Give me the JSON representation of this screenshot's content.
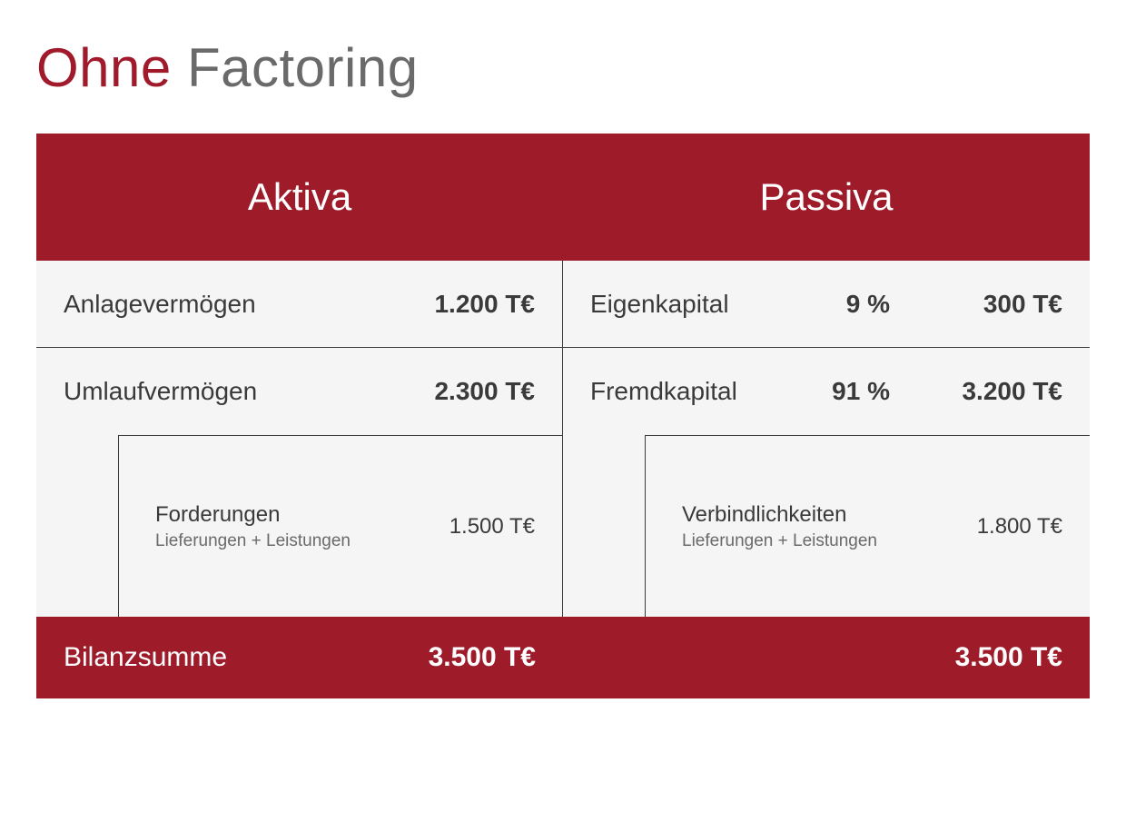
{
  "title": {
    "accent": "Ohne",
    "rest": " Factoring"
  },
  "colors": {
    "accent": "#a11a2b",
    "header_bg": "#9e1b2a",
    "header_fg": "#ffffff",
    "body_bg": "#f5f5f5",
    "text": "#3a3a3a",
    "muted": "#6a6a6a",
    "rule": "#3a3a3a"
  },
  "header": {
    "left": "Aktiva",
    "right": "Passiva"
  },
  "aktiva": {
    "row1": {
      "label": "Anlagevermögen",
      "value": "1.200 T€"
    },
    "row2": {
      "label": "Umlaufvermögen",
      "value": "2.300 T€"
    },
    "sub": {
      "label": "Forderungen",
      "sublabel": "Lieferungen + Leistungen",
      "value": "1.500 T€"
    }
  },
  "passiva": {
    "row1": {
      "label": "Eigenkapital",
      "pct": "9 %",
      "value": "300 T€"
    },
    "row2": {
      "label": "Fremdkapital",
      "pct": "91 %",
      "value": "3.200 T€"
    },
    "sub": {
      "label": "Verbindlichkeiten",
      "sublabel": "Lieferungen + Leistungen",
      "value": "1.800 T€"
    }
  },
  "footer": {
    "label": "Bilanzsumme",
    "left_value": "3.500 T€",
    "right_value": "3.500 T€"
  },
  "typography": {
    "title_fontsize": 60,
    "header_fontsize": 42,
    "row_fontsize": 28,
    "sub_fontsize": 24,
    "subsub_fontsize": 19,
    "footer_fontsize": 30
  }
}
